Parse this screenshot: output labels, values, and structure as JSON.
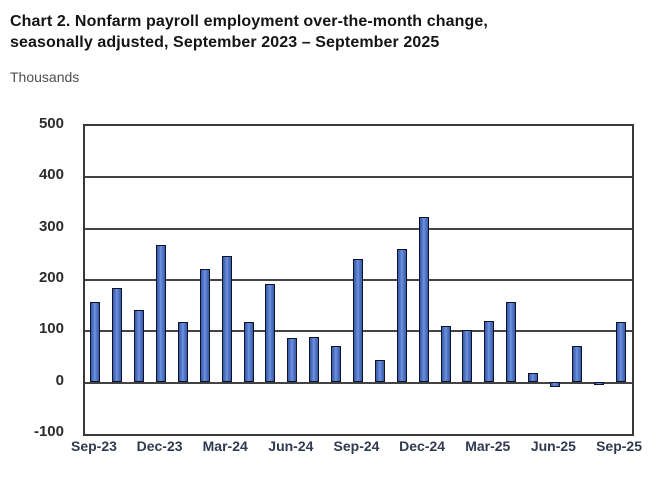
{
  "header": {
    "title_line1": "Chart 2. Nonfarm payroll employment over-the-month change,",
    "title_line2": "seasonally adjusted, September 2023 – September 2025",
    "units_label": "Thousands"
  },
  "chart_data": {
    "type": "bar",
    "title": "Chart 2. Nonfarm payroll employment over-the-month change, seasonally adjusted, September 2023 – September 2025",
    "ylabel": "Thousands",
    "xlabel": "",
    "categories": [
      "Sep-23",
      "Oct-23",
      "Nov-23",
      "Dec-23",
      "Jan-24",
      "Feb-24",
      "Mar-24",
      "Apr-24",
      "May-24",
      "Jun-24",
      "Jul-24",
      "Aug-24",
      "Sep-24",
      "Oct-24",
      "Nov-24",
      "Dec-24",
      "Jan-25",
      "Feb-25",
      "Mar-25",
      "Apr-25",
      "May-25",
      "Jun-25",
      "Jul-25",
      "Aug-25",
      "Sep-25"
    ],
    "values": [
      157,
      184,
      141,
      269,
      119,
      222,
      246,
      118,
      193,
      87,
      88,
      71,
      240,
      44,
      261,
      323,
      111,
      102,
      120,
      158,
      19,
      -13,
      72,
      -4,
      119
    ],
    "x_tick_labels": [
      "Sep-23",
      "Dec-23",
      "Mar-24",
      "Jun-24",
      "Sep-24",
      "Dec-24",
      "Mar-25",
      "Jun-25",
      "Sep-25"
    ],
    "x_tick_every": 3,
    "y_ticks": [
      500,
      400,
      300,
      200,
      100,
      0,
      -100
    ],
    "ylim": [
      -100,
      500
    ],
    "grid": true,
    "legend": "none",
    "bar_fill_color": "#4a6fc4",
    "bar_border_color": "#0d1226",
    "gridline_color": "#434343",
    "frame_color": "#383838"
  }
}
